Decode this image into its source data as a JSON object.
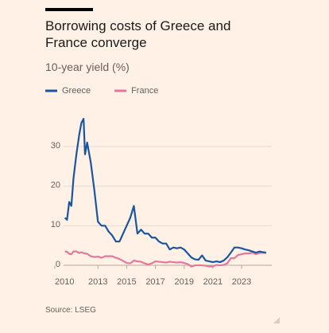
{
  "chart_data": {
    "type": "line",
    "title": "Borrowing costs of Greece and France converge",
    "subtitle": "10-year yield (%)",
    "source": "Source: LSEG",
    "x": [
      2010.7,
      2010.85,
      2011.0,
      2011.15,
      2011.3,
      2011.5,
      2011.7,
      2011.85,
      2012.0,
      2012.1,
      2012.25,
      2012.5,
      2012.75,
      2013.0,
      2013.25,
      2013.5,
      2013.75,
      2014.0,
      2014.25,
      2014.5,
      2014.75,
      2015.0,
      2015.25,
      2015.5,
      2015.75,
      2016.0,
      2016.25,
      2016.5,
      2016.75,
      2017.0,
      2017.25,
      2017.5,
      2017.75,
      2018.0,
      2018.25,
      2018.5,
      2018.75,
      2019.0,
      2019.25,
      2019.5,
      2019.75,
      2020.0,
      2020.25,
      2020.5,
      2020.75,
      2021.0,
      2021.25,
      2021.5,
      2021.75,
      2022.0,
      2022.25,
      2022.5,
      2022.75,
      2023.0,
      2023.25,
      2023.5,
      2023.75,
      2024.0,
      2024.25,
      2024.5,
      2024.7
    ],
    "series": [
      {
        "name": "Greece",
        "color": "#1a55a0",
        "values": [
          12,
          11.5,
          16,
          15,
          22,
          28,
          33,
          36,
          37,
          28,
          31,
          26,
          19,
          11,
          10,
          10,
          8.5,
          7.5,
          6,
          6,
          8,
          10,
          12,
          15,
          8,
          9,
          8,
          8,
          7,
          7,
          6,
          5.5,
          5.5,
          4,
          4.5,
          4.3,
          4.5,
          4,
          3,
          2,
          1.5,
          1.4,
          2.5,
          1.2,
          1,
          0.8,
          1,
          0.8,
          1.2,
          2,
          3.2,
          4.5,
          4.5,
          4.3,
          4,
          3.8,
          3.5,
          3.2,
          3.5,
          3.3,
          3.2
        ]
      },
      {
        "name": "France",
        "color": "#e3789d",
        "values": [
          3.5,
          3.4,
          2.9,
          2.8,
          3.5,
          3.5,
          3.1,
          3.3,
          3.1,
          3.0,
          2.9,
          2.3,
          2.1,
          2.2,
          1.9,
          2.3,
          2.3,
          2.3,
          1.9,
          1.6,
          1.1,
          0.6,
          0.5,
          1.2,
          1.0,
          0.9,
          0.5,
          0.2,
          0.5,
          1.0,
          0.9,
          0.8,
          0.7,
          0.9,
          0.8,
          0.7,
          0.8,
          0.6,
          0.3,
          -0.3,
          0.0,
          0.0,
          0.0,
          -0.1,
          -0.3,
          -0.3,
          0.1,
          0.0,
          0.1,
          0.5,
          1.8,
          1.8,
          2.6,
          2.8,
          3.0,
          3.0,
          3.2,
          2.8,
          3.1,
          3.2,
          3.1
        ]
      }
    ],
    "xlim": [
      2010,
      2025.1
    ],
    "xticks": [
      2010,
      2013,
      2015,
      2017,
      2019,
      2021,
      2023
    ],
    "ylim": [
      -1.5,
      37.5
    ],
    "yticks": [
      0,
      10,
      20,
      30
    ],
    "grid": true,
    "legend": "top-left"
  }
}
